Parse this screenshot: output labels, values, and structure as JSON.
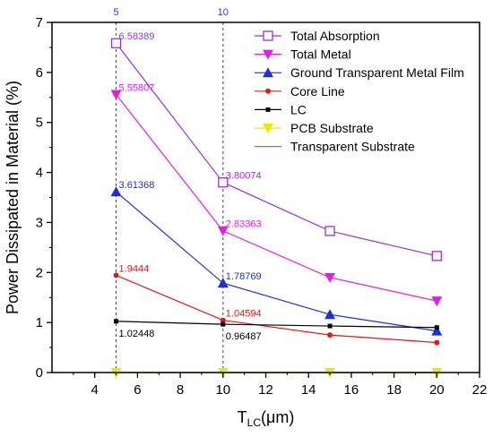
{
  "chart_data": {
    "type": "line",
    "xlabel_main": "T",
    "xlabel_sub": "LC",
    "xlabel_unit": "(μm)",
    "ylabel": "Power Dissipated in Material (%)",
    "xlim": [
      2,
      22
    ],
    "ylim": [
      0,
      7
    ],
    "x_ticks": [
      "4",
      "6",
      "8",
      "10",
      "12",
      "14",
      "16",
      "18",
      "20",
      "22"
    ],
    "y_ticks": [
      "0",
      "1",
      "2",
      "3",
      "4",
      "5",
      "6",
      "7"
    ],
    "grid": false,
    "legend_position": "top-right",
    "x": [
      5,
      10,
      15,
      20
    ],
    "series": [
      {
        "name": "Total Absorption",
        "values": [
          6.58389,
          3.80074,
          2.83,
          2.33
        ],
        "color": "#9b30d0",
        "marker": "open-square"
      },
      {
        "name": "Total Metal",
        "values": [
          5.55807,
          2.83363,
          1.9,
          1.43
        ],
        "color": "#e020e0",
        "marker": "down-triangle"
      },
      {
        "name": "Ground Transparent Metal Film",
        "values": [
          3.61368,
          1.78769,
          1.16,
          0.83
        ],
        "color": "#1f2fd6",
        "marker": "up-triangle"
      },
      {
        "name": "Core Line",
        "values": [
          1.9444,
          1.04594,
          0.75,
          0.6
        ],
        "color": "#e01818",
        "marker": "circle"
      },
      {
        "name": "LC",
        "values": [
          1.02448,
          0.96487,
          0.93,
          0.9
        ],
        "color": "#000000",
        "marker": "square"
      },
      {
        "name": "PCB Substrate",
        "values": [
          0,
          0,
          0,
          0
        ],
        "color": "#e8e800",
        "marker": "down-triangle"
      },
      {
        "name": "Transparent Substrate",
        "values": [
          0,
          0,
          0,
          0
        ],
        "color": "#22bb22",
        "marker": "none"
      }
    ],
    "annotations": [
      {
        "text": "6.58389",
        "x": 5,
        "y": 6.58389,
        "color": "#9b30d0"
      },
      {
        "text": "3.80074",
        "x": 10,
        "y": 3.80074,
        "color": "#9b30d0"
      },
      {
        "text": "5.55807",
        "x": 5,
        "y": 5.55807,
        "color": "#e020e0"
      },
      {
        "text": "2.83363",
        "x": 10,
        "y": 2.83363,
        "color": "#e020e0"
      },
      {
        "text": "3.61368",
        "x": 5,
        "y": 3.61368,
        "color": "#1f2fd6"
      },
      {
        "text": "1.78769",
        "x": 10,
        "y": 1.78769,
        "color": "#1f2fd6"
      },
      {
        "text": "1.9444",
        "x": 5,
        "y": 1.9444,
        "color": "#e01818"
      },
      {
        "text": "1.04594",
        "x": 10,
        "y": 1.04594,
        "color": "#e01818"
      },
      {
        "text": "1.02448",
        "x": 5,
        "y": 1.02448,
        "color": "#000000",
        "below": true
      },
      {
        "text": "0.96487",
        "x": 10,
        "y": 0.96487,
        "color": "#000000",
        "below": true
      }
    ],
    "reference_lines": [
      {
        "x": 5,
        "label": "5",
        "color": "#1f3fd0"
      },
      {
        "x": 10,
        "label": "10",
        "color": "#1f3fd0"
      }
    ]
  }
}
